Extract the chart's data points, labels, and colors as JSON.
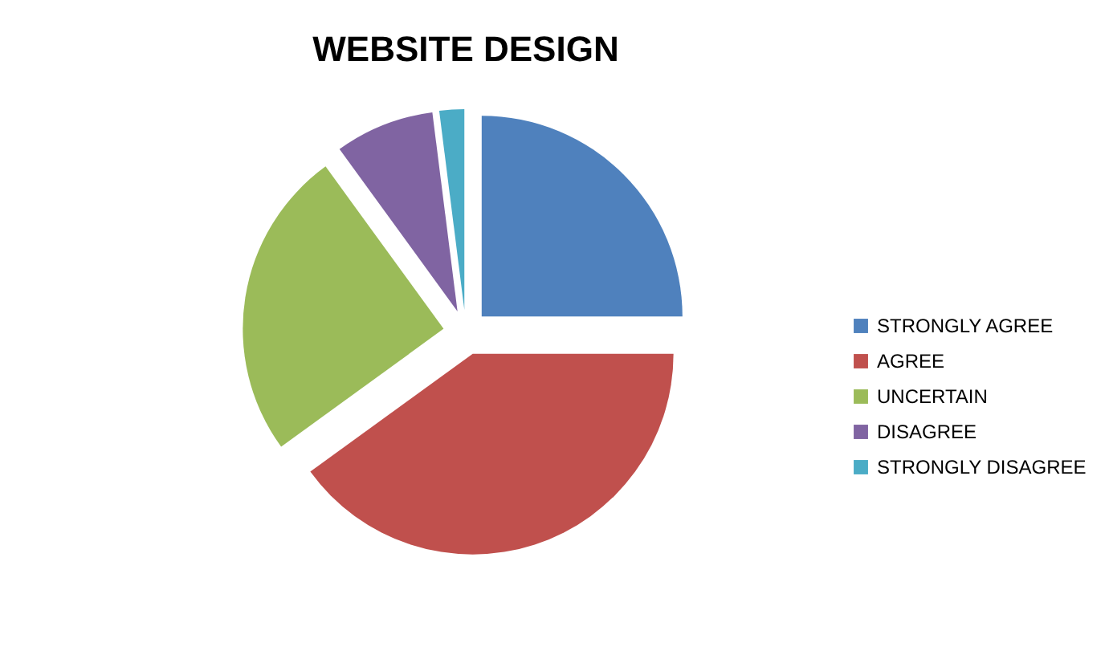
{
  "chart_data": {
    "type": "pie",
    "title": "WEBSITE DESIGN",
    "categories": [
      "STRONGLY AGREE",
      "AGREE",
      "UNCERTAIN",
      "DISAGREE",
      "STRONGLY DISAGREE"
    ],
    "values": [
      25,
      40,
      25,
      8,
      2
    ],
    "colors": [
      "#4f81bd",
      "#c0504d",
      "#9bbb59",
      "#8064a2",
      "#4bacc6"
    ],
    "legend": "right"
  }
}
